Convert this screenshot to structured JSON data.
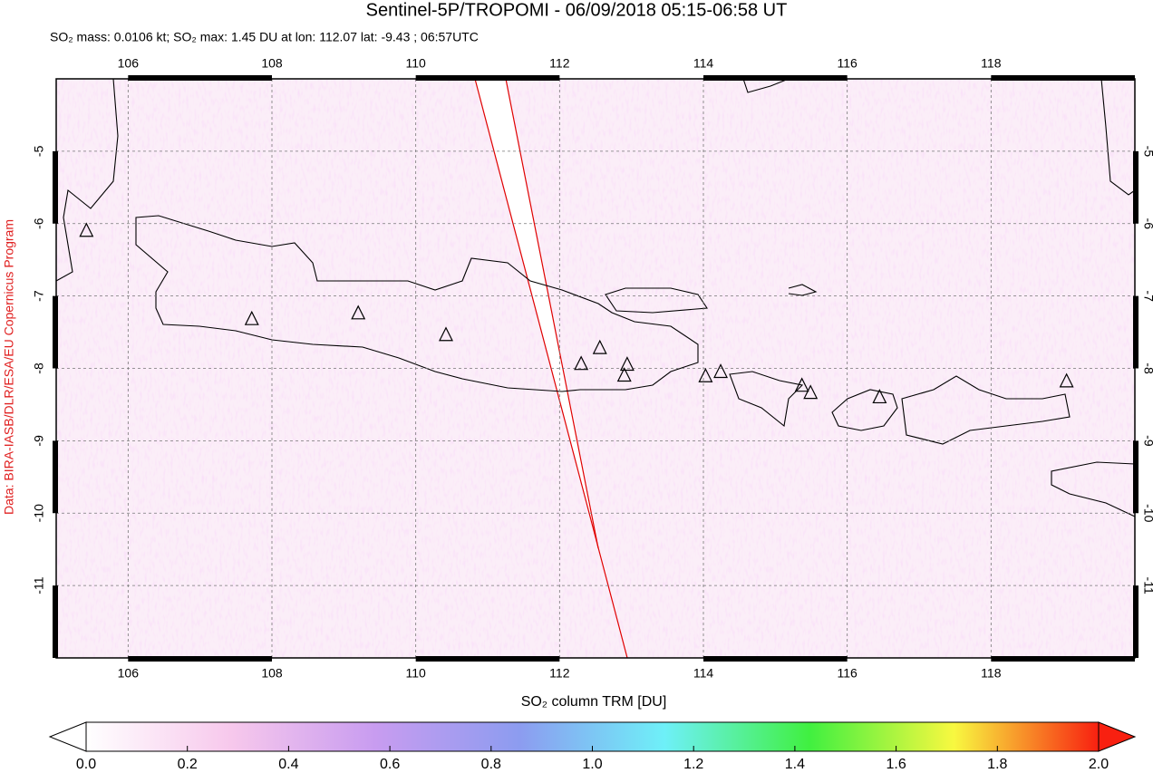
{
  "chart_data": {
    "type": "map",
    "title": "Sentinel-5P/TROPOMI - 06/09/2018 05:15-06:58 UT",
    "subtitle": "SO₂ mass: 0.0106 kt; SO₂ max: 1.45 DU at lon: 112.07 lat: -9.43 ; 06:57UTC",
    "credit": "Data: BIRA-IASB/DLR/ESA/EU Copernicus Program",
    "xlim": [
      105,
      120
    ],
    "ylim": [
      -12,
      -4
    ],
    "xticks": [
      106,
      108,
      110,
      112,
      114,
      116,
      118
    ],
    "yticks": [
      -5,
      -6,
      -7,
      -8,
      -9,
      -10,
      -11
    ],
    "grid": true,
    "volcanoes": {
      "lon": [
        105.42,
        107.72,
        109.2,
        110.42,
        112.3,
        112.56,
        112.94,
        112.9,
        114.03,
        114.24,
        115.37,
        115.49,
        116.45,
        119.05
      ],
      "lat": [
        -6.1,
        -7.32,
        -7.24,
        -7.54,
        -7.94,
        -7.72,
        -7.95,
        -8.1,
        -8.11,
        -8.05,
        -8.24,
        -8.34,
        -8.4,
        -8.18
      ]
    },
    "colorbar": {
      "label": "SO₂ column TRM [DU]",
      "clim": [
        0,
        2
      ],
      "colors": [
        "#ffffff",
        "#f7c8ec",
        "#c89cf0",
        "#8c9cf0",
        "#6ef0f8",
        "#40f040",
        "#f8f840",
        "#f82010"
      ],
      "ticks": [
        {
          "value": 0,
          "label": "0.0"
        },
        {
          "value": 0.2,
          "label": "0.2"
        },
        {
          "value": 0.4,
          "label": "0.4"
        },
        {
          "value": 0.6,
          "label": "0.6"
        },
        {
          "value": 0.8,
          "label": "0.8"
        },
        {
          "value": 1,
          "label": "1.0"
        },
        {
          "value": 1.2,
          "label": "1.2"
        },
        {
          "value": 1.4,
          "label": "1.4"
        },
        {
          "value": 1.6,
          "label": "1.6"
        },
        {
          "value": 1.8,
          "label": "1.8"
        },
        {
          "value": 2,
          "label": "2.0"
        }
      ]
    }
  }
}
